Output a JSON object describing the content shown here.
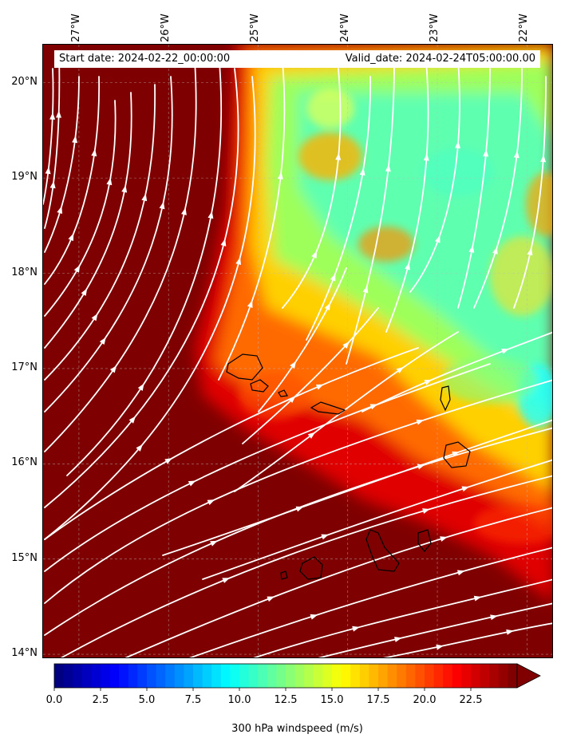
{
  "map": {
    "start_date": "Start date: 2024-02-22_00:00:00",
    "valid_date": "Valid_date: 2024-02-24T05:00:00.00",
    "lon_labels": [
      "27°W",
      "26°W",
      "25°W",
      "24°W",
      "23°W",
      "22°W"
    ],
    "lat_labels": [
      "20°N",
      "19°N",
      "18°N",
      "17°N",
      "16°N",
      "15°N",
      "14°N"
    ],
    "lon_range": [
      -27.4,
      -21.7
    ],
    "lat_range": [
      13.95,
      20.4
    ],
    "variable": "300 hPa windspeed (m/s)",
    "grid": true,
    "background_color": "#7f0000",
    "streamline_color": "#ffffff",
    "coastline_color": "#000000",
    "islands": [
      "Santo Antão",
      "São Vicente",
      "São Nicolau",
      "Sal",
      "Boa Vista",
      "Maio",
      "Santiago",
      "Fogo",
      "Brava"
    ]
  },
  "colorbar": {
    "title": "300 hPa windspeed (m/s)",
    "ticks": [
      "0.0",
      "2.5",
      "5.0",
      "7.5",
      "10.0",
      "12.5",
      "15.0",
      "17.5",
      "20.0",
      "22.5"
    ],
    "range": [
      0,
      25
    ],
    "colormap": "jet",
    "extend": "max"
  }
}
